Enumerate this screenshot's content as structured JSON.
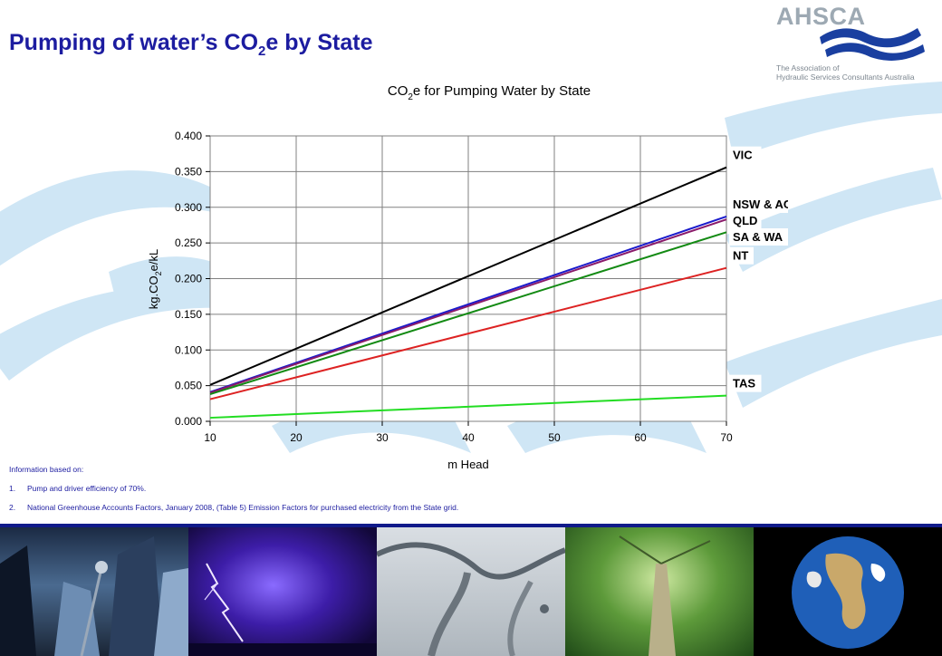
{
  "slide": {
    "title_main": "Pumping of water’s CO",
    "title_sub": "2",
    "title_tail": "e by State"
  },
  "logo": {
    "name": "AHSCA",
    "caption_line1": "The Association of",
    "caption_line2": "Hydraulic Services Consultants Australia"
  },
  "chart_data": {
    "type": "line",
    "title_parts": [
      "CO",
      "2",
      "e for Pumping Water by State"
    ],
    "xlabel": "m Head",
    "ylabel_parts": [
      "kg.CO",
      "2",
      "e/kL"
    ],
    "xlim": [
      10,
      70
    ],
    "ylim": [
      0,
      0.4
    ],
    "x_ticks": [
      10,
      20,
      30,
      40,
      50,
      60,
      70
    ],
    "y_ticks": [
      0,
      0.05,
      0.1,
      0.15,
      0.2,
      0.25,
      0.3,
      0.35,
      0.4
    ],
    "y_tick_labels": [
      "0.000",
      "0.050",
      "0.100",
      "0.150",
      "0.200",
      "0.250",
      "0.300",
      "0.350",
      "0.400"
    ],
    "grid": true,
    "series": [
      {
        "name": "VIC",
        "x": [
          10,
          70
        ],
        "values": [
          0.051,
          0.356
        ],
        "color": "#000000"
      },
      {
        "name": "NSW & ACT",
        "x": [
          10,
          70
        ],
        "values": [
          0.041,
          0.287
        ],
        "color": "#1a1acc"
      },
      {
        "name": "QLD",
        "x": [
          10,
          70
        ],
        "values": [
          0.04,
          0.283
        ],
        "color": "#8a1a6a"
      },
      {
        "name": "SA & WA",
        "x": [
          10,
          70
        ],
        "values": [
          0.038,
          0.265
        ],
        "color": "#138a13"
      },
      {
        "name": "NT",
        "x": [
          10,
          70
        ],
        "values": [
          0.031,
          0.215
        ],
        "color": "#dd2222"
      },
      {
        "name": "TAS",
        "x": [
          10,
          70
        ],
        "values": [
          0.005,
          0.036
        ],
        "color": "#22dd22"
      }
    ]
  },
  "notes": {
    "heading": "Information based on:",
    "items": [
      {
        "num": "1.",
        "text": "Pump and driver efficiency of 70%."
      },
      {
        "num": "2.",
        "text": "National Greenhouse Accounts Factors, January 2008, (Table 5) Emission Factors for purchased electricity from the State grid."
      }
    ]
  },
  "photos": [
    {
      "icon": "city-skyline-image"
    },
    {
      "icon": "lightning-storm-image"
    },
    {
      "icon": "water-splash-image"
    },
    {
      "icon": "forest-tree-image"
    },
    {
      "icon": "earth-globe-image"
    }
  ]
}
